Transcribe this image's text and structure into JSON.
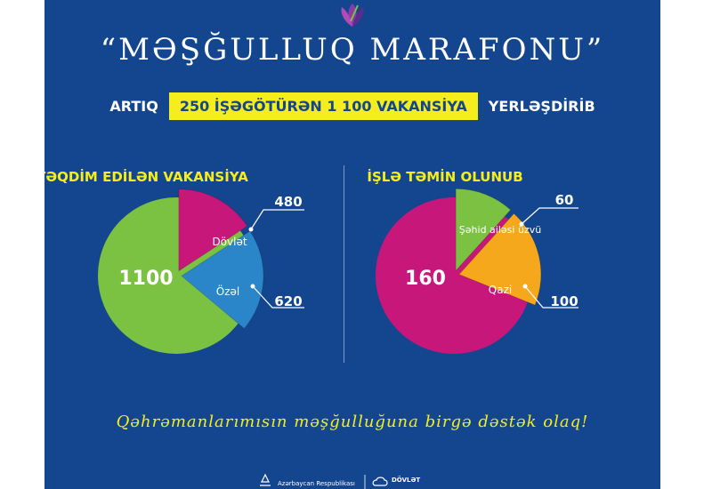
{
  "header": {
    "title": "“MƏŞĞULLUQ MARAFONU”",
    "subtitle_prefix": "ARTIQ",
    "subtitle_highlight": "250 İŞƏGÖTÜRƏN 1 100 VAKANSİYA",
    "subtitle_suffix": "YERLƏŞDİRİB"
  },
  "footer": {
    "slogan": "Qəhrəmanlarımısın məşğulluğuna birgə dəstək olaq!",
    "logo_left_text": "Azərbaycan Respublikası",
    "logo_right_text": "DÖVLƏT"
  },
  "colors": {
    "background": "#14468f",
    "accent_yellow": "#f5ee1c",
    "green": "#7cc242",
    "magenta": "#c8177a",
    "blue": "#2a86c9",
    "orange": "#f5a81c"
  },
  "chart_data": [
    {
      "type": "pie",
      "title": "TƏQDİM EDİLƏN VAKANSİYA",
      "total_label": "1100",
      "slices": [
        {
          "name": "Dövlət",
          "value": 480,
          "color": "#c8177a"
        },
        {
          "name": "Özəl",
          "value": 620,
          "color": "#2a86c9"
        }
      ]
    },
    {
      "type": "pie",
      "title": "İŞLƏ TƏMİN OLUNUB",
      "total_label": "160",
      "slices": [
        {
          "name": "Şəhid ailəsi üzvü",
          "value": 60,
          "color": "#7cc242"
        },
        {
          "name": "Qazi",
          "value": 100,
          "color": "#f5a81c"
        }
      ]
    }
  ]
}
